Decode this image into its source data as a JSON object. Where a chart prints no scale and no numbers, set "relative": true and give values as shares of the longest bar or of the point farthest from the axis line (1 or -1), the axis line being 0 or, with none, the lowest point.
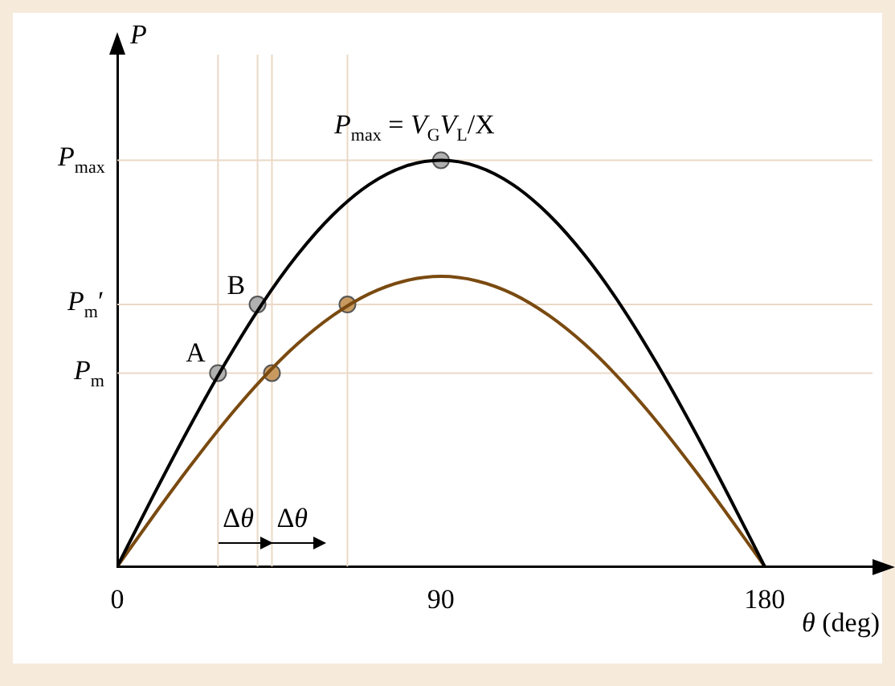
{
  "chart_data": {
    "type": "line",
    "title": "P$_{max}$ = V$_{G}$V$_{L}$/X",
    "xlabel": "θ (deg)",
    "ylabel": "P",
    "relative": true,
    "xlim": [
      0,
      210
    ],
    "xticks": [
      0,
      90,
      180
    ],
    "grid": false,
    "legend": false,
    "series": [
      {
        "color": "#000000",
        "marker": "none",
        "x": [
          0,
          10,
          20,
          30,
          40,
          50,
          60,
          70,
          80,
          90,
          100,
          110,
          120,
          130,
          140,
          150,
          160,
          170,
          180
        ],
        "values": [
          0,
          0.174,
          0.342,
          0.5,
          0.643,
          0.766,
          0.866,
          0.94,
          0.985,
          1,
          0.985,
          0.94,
          0.866,
          0.766,
          0.643,
          0.5,
          0.342,
          0.174,
          0
        ]
      },
      {
        "color": "#7a4a10",
        "marker": "none",
        "x": [
          0,
          10,
          20,
          30,
          40,
          50,
          60,
          70,
          80,
          90,
          100,
          110,
          120,
          130,
          140,
          150,
          160,
          170,
          180
        ],
        "values": [
          0,
          0.124,
          0.244,
          0.357,
          0.459,
          0.547,
          0.618,
          0.671,
          0.703,
          0.714,
          0.703,
          0.671,
          0.618,
          0.547,
          0.459,
          0.357,
          0.244,
          0.124,
          0
        ]
      },
      {
        "type": "scatter",
        "color": "#b0b0b0",
        "marker": "circle",
        "x": [
          28,
          39,
          90
        ],
        "values": [
          0.476,
          0.645,
          1
        ]
      },
      {
        "type": "scatter",
        "color": "#c89a60",
        "marker": "circle",
        "x": [
          43,
          64
        ],
        "values": [
          0.476,
          0.645
        ]
      }
    ],
    "ref_lines": [
      {
        "axis": "y",
        "value": 1,
        "label": "P$_{max}$",
        "color": "#ead9c6"
      },
      {
        "axis": "y",
        "value": 0.645,
        "label": "P$_{m}$′",
        "color": "#ead9c6"
      },
      {
        "axis": "y",
        "value": 0.476,
        "label": "P$_{m}$",
        "color": "#ead9c6"
      },
      {
        "axis": "x",
        "value": 28,
        "color": "#ead9c6"
      },
      {
        "axis": "x",
        "value": 39,
        "color": "#ead9c6"
      },
      {
        "axis": "x",
        "value": 43,
        "color": "#ead9c6"
      },
      {
        "axis": "x",
        "value": 64,
        "color": "#ead9c6"
      }
    ],
    "annotations": [
      {
        "text": "A",
        "x": 28,
        "y": 0.476
      },
      {
        "text": "B",
        "x": 39,
        "y": 0.645
      },
      {
        "text": "Δθ",
        "x": 28,
        "y": 0.03
      },
      {
        "text": "Δθ",
        "x": 43,
        "y": 0.03
      }
    ]
  }
}
